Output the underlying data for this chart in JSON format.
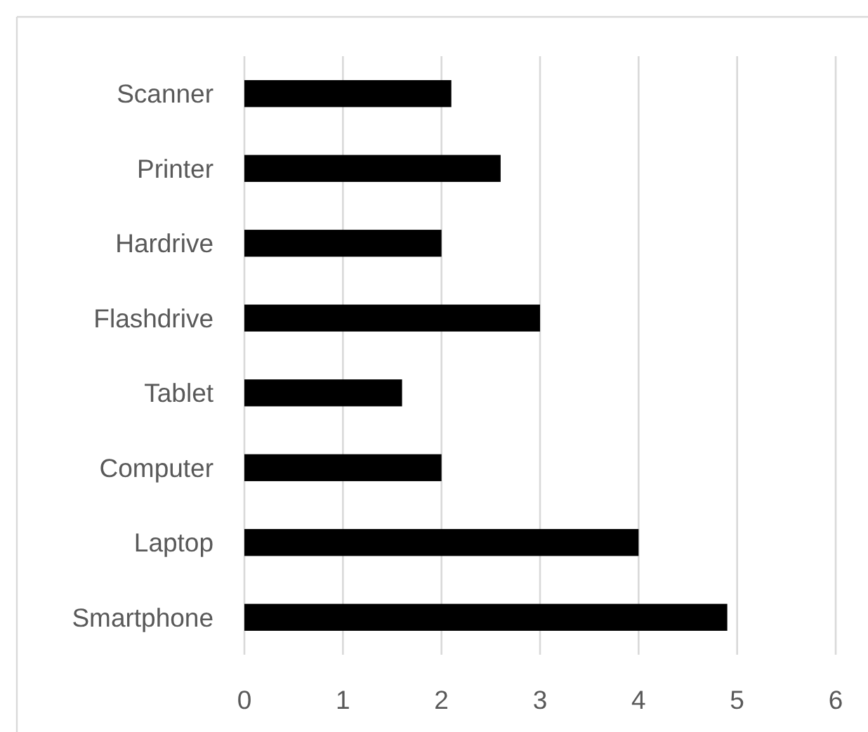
{
  "chart_data": {
    "type": "bar",
    "orientation": "horizontal",
    "categories": [
      "Scanner",
      "Printer",
      "Hardrive",
      "Flashdrive",
      "Tablet",
      "Computer",
      "Laptop",
      "Smartphone"
    ],
    "values": [
      2.1,
      2.6,
      2.0,
      3.0,
      1.6,
      2.0,
      4.0,
      4.9
    ],
    "color": "#000000",
    "xlim": [
      0,
      6
    ],
    "xticks": [
      0,
      1,
      2,
      3,
      4,
      5,
      6
    ],
    "grid": "x"
  }
}
